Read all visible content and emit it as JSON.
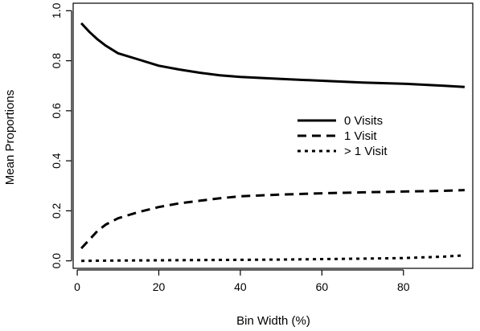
{
  "chart_data": {
    "type": "line",
    "title": "",
    "xlabel": "Bin Width (%)",
    "ylabel": "Mean Proportions",
    "xlim": [
      -1,
      97
    ],
    "ylim": [
      -0.03,
      1.03
    ],
    "xticks": [
      0,
      20,
      40,
      60,
      80
    ],
    "xtick_labels": [
      "0",
      "20",
      "40",
      "60",
      "80"
    ],
    "yticks": [
      0.0,
      0.2,
      0.4,
      0.6,
      0.8,
      1.0
    ],
    "ytick_labels": [
      "0.0",
      "0.2",
      "0.4",
      "0.6",
      "0.8",
      "1.0"
    ],
    "grid": false,
    "legend_position": "right-middle",
    "series": [
      {
        "name": "0 Visits",
        "dash": "solid",
        "x": [
          1,
          3,
          5,
          7,
          10,
          15,
          20,
          25,
          30,
          35,
          40,
          50,
          60,
          70,
          80,
          90,
          95
        ],
        "y": [
          0.95,
          0.915,
          0.885,
          0.86,
          0.83,
          0.805,
          0.78,
          0.765,
          0.752,
          0.742,
          0.735,
          0.727,
          0.72,
          0.713,
          0.708,
          0.7,
          0.695
        ]
      },
      {
        "name": "1 Visit",
        "dash": "dashed",
        "x": [
          1,
          3,
          5,
          7,
          10,
          15,
          20,
          25,
          30,
          35,
          40,
          50,
          60,
          70,
          80,
          90,
          95
        ],
        "y": [
          0.05,
          0.085,
          0.12,
          0.145,
          0.17,
          0.195,
          0.215,
          0.23,
          0.24,
          0.25,
          0.258,
          0.265,
          0.27,
          0.274,
          0.277,
          0.28,
          0.283
        ]
      },
      {
        "name": "> 1 Visit",
        "dash": "dotted",
        "x": [
          1,
          10,
          20,
          30,
          40,
          50,
          60,
          70,
          80,
          90,
          95
        ],
        "y": [
          0.0,
          0.001,
          0.002,
          0.003,
          0.004,
          0.005,
          0.007,
          0.009,
          0.011,
          0.017,
          0.022
        ]
      }
    ]
  }
}
